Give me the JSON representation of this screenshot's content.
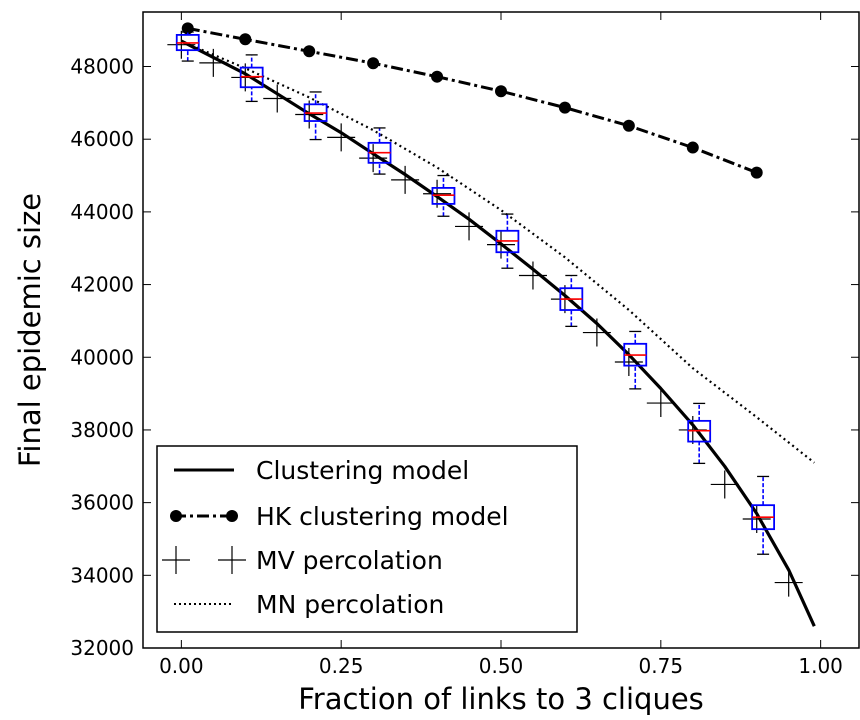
{
  "chart_data": {
    "type": "line",
    "title": "",
    "xlabel": "Fraction of links to 3 cliques",
    "ylabel": "Final epidemic size",
    "xlim": [
      -0.06,
      1.06
    ],
    "ylim": [
      32000,
      49500
    ],
    "xticks": [
      0.0,
      0.25,
      0.5,
      0.75,
      1.0
    ],
    "xtick_labels": [
      "0.00",
      "0.25",
      "0.50",
      "0.75",
      "1.00"
    ],
    "yticks": [
      32000,
      34000,
      36000,
      38000,
      40000,
      42000,
      44000,
      46000,
      48000
    ],
    "ytick_labels": [
      "32000",
      "34000",
      "36000",
      "38000",
      "40000",
      "42000",
      "44000",
      "46000",
      "48000"
    ],
    "grid": false,
    "legend_position": "bottom-left",
    "series": [
      {
        "name": "Clustering model",
        "style": "solid",
        "color": "#000000",
        "x": [
          0.0,
          0.05,
          0.1,
          0.15,
          0.2,
          0.25,
          0.3,
          0.35,
          0.4,
          0.45,
          0.5,
          0.55,
          0.6,
          0.65,
          0.7,
          0.75,
          0.8,
          0.85,
          0.9,
          0.95,
          0.99
        ],
        "y": [
          48700,
          48250,
          47800,
          47250,
          46700,
          46180,
          45600,
          45030,
          44420,
          43800,
          43120,
          42420,
          41700,
          40930,
          40070,
          39140,
          38140,
          37000,
          35700,
          34150,
          32600
        ]
      },
      {
        "name": "HK clustering model",
        "style": "dashdot-dots",
        "color": "#000000",
        "x": [
          0.01,
          0.1,
          0.2,
          0.3,
          0.4,
          0.5,
          0.6,
          0.7,
          0.8,
          0.9
        ],
        "y": [
          49050,
          48750,
          48420,
          48090,
          47720,
          47320,
          46870,
          46370,
          45770,
          45080
        ]
      },
      {
        "name": "MV percolation",
        "style": "plus-markers",
        "color": "#000000",
        "x": [
          0.0,
          0.05,
          0.1,
          0.15,
          0.2,
          0.25,
          0.3,
          0.35,
          0.4,
          0.45,
          0.5,
          0.55,
          0.6,
          0.65,
          0.7,
          0.75,
          0.8,
          0.85,
          0.9,
          0.95
        ],
        "y": [
          48600,
          48100,
          47700,
          47120,
          46680,
          46050,
          45480,
          44880,
          44500,
          43600,
          43100,
          42250,
          41600,
          40680,
          39870,
          38740,
          38000,
          36500,
          35550,
          33800
        ]
      },
      {
        "name": "MN percolation",
        "style": "dotted",
        "color": "#000000",
        "x": [
          0.0,
          0.1,
          0.2,
          0.3,
          0.4,
          0.5,
          0.6,
          0.7,
          0.8,
          0.9,
          0.99
        ],
        "y": [
          48700,
          47950,
          47150,
          46250,
          45220,
          44050,
          42750,
          41300,
          39700,
          38350,
          37100
        ]
      }
    ],
    "boxplots": {
      "x": [
        0.01,
        0.11,
        0.21,
        0.31,
        0.41,
        0.51,
        0.61,
        0.71,
        0.81,
        0.91
      ],
      "median": [
        48650,
        47720,
        46720,
        45630,
        44460,
        43200,
        41600,
        40060,
        37980,
        35600
      ],
      "q1": [
        48450,
        47430,
        46500,
        45350,
        44220,
        42890,
        41300,
        39770,
        37680,
        35270
      ],
      "q3": [
        48870,
        47970,
        46960,
        45900,
        44660,
        43480,
        41900,
        40370,
        38250,
        35930
      ],
      "whisker_low": [
        48150,
        47040,
        45990,
        45040,
        43880,
        42450,
        40850,
        39130,
        37080,
        34580
      ],
      "whisker_high": [
        48950,
        48320,
        47300,
        46310,
        45000,
        43940,
        42250,
        40710,
        38730,
        36720
      ],
      "box_color": "#0000ff",
      "median_color": "#ff0000"
    }
  }
}
